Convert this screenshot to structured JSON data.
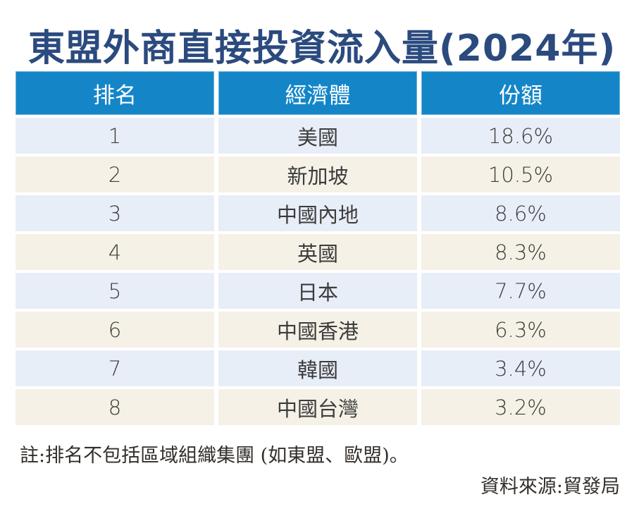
{
  "header": {
    "title": "東盟外商直接投資流入量(2024年)"
  },
  "chart_data": {
    "type": "table",
    "title": "東盟外商直接投資流入量(2024年)",
    "columns": [
      "排名",
      "經濟體",
      "份額"
    ],
    "rows": [
      [
        "1",
        "美國",
        "18.6%"
      ],
      [
        "2",
        "新加坡",
        "10.5%"
      ],
      [
        "3",
        "中國內地",
        "8.6%"
      ],
      [
        "4",
        "英國",
        "8.3%"
      ],
      [
        "5",
        "日本",
        "7.7%"
      ],
      [
        "6",
        "中國香港",
        "6.3%"
      ],
      [
        "7",
        "韓國",
        "3.4%"
      ],
      [
        "8",
        "中國台灣",
        "3.2%"
      ]
    ],
    "share_values_pct": [
      18.6,
      10.5,
      8.6,
      8.3,
      7.7,
      6.3,
      3.4,
      3.2
    ],
    "note": "註:排名不包括區域組織集團 (如東盟、歐盟)。",
    "source": "資料來源:貿發局"
  },
  "colors": {
    "title_navy": "#2b4a7e",
    "header_blue": "#1486c8",
    "row_light_blue": "#e8eef8",
    "row_cream": "#f5f1e6",
    "body_text": "#3c3c3c",
    "note_text": "#332e29"
  },
  "footer": {
    "note": "註:排名不包括區域組織集團 (如東盟、歐盟)。",
    "source": "資料來源:貿發局"
  }
}
